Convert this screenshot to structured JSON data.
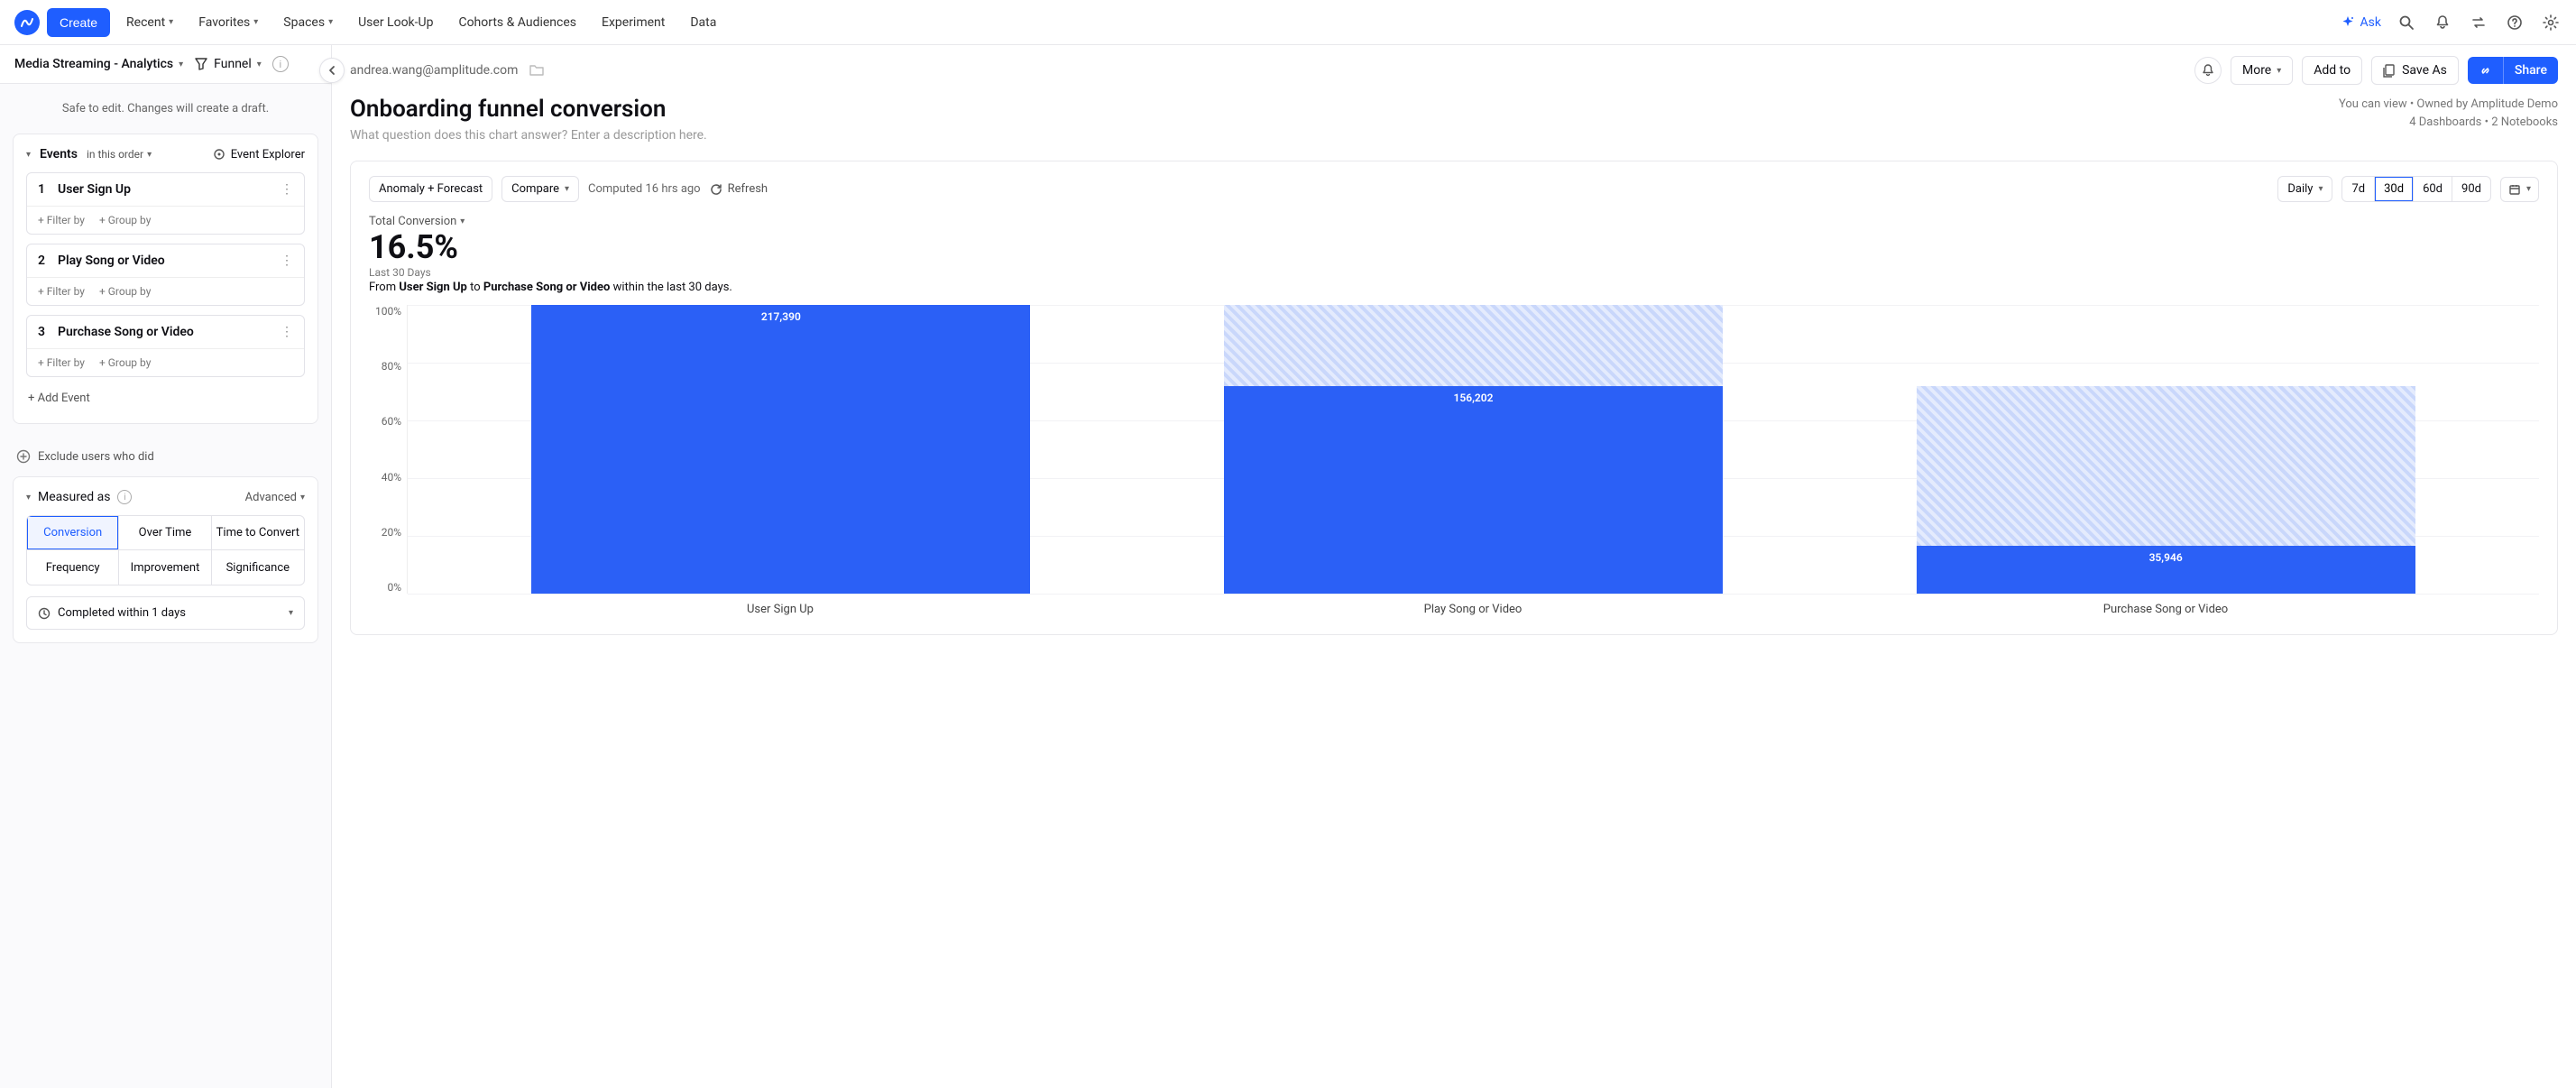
{
  "topbar": {
    "create": "Create",
    "nav": [
      "Recent",
      "Favorites",
      "Spaces",
      "User Look-Up",
      "Cohorts & Audiences",
      "Experiment",
      "Data"
    ],
    "ask": "Ask"
  },
  "left": {
    "project": "Media Streaming - Analytics",
    "chartType": "Funnel",
    "safeEdit": "Safe to edit. Changes will create a draft.",
    "eventsTitle": "Events",
    "inOrder": "in this order",
    "eventExplorer": "Event Explorer",
    "events": [
      {
        "n": "1",
        "name": "User Sign Up"
      },
      {
        "n": "2",
        "name": "Play Song or Video"
      },
      {
        "n": "3",
        "name": "Purchase Song or Video"
      }
    ],
    "filterBy": "+ Filter by",
    "groupBy": "+ Group by",
    "addEvent": "+ Add Event",
    "exclude": "Exclude users who did",
    "measuredAs": "Measured as",
    "advanced": "Advanced",
    "measures": [
      "Conversion",
      "Over Time",
      "Time to Convert",
      "Frequency",
      "Improvement",
      "Significance"
    ],
    "activeMeasure": 0,
    "completed": "Completed within 1 days"
  },
  "main": {
    "email": "andrea.wang@amplitude.com",
    "more": "More",
    "addTo": "Add to",
    "saveAs": "Save As",
    "share": "Share",
    "title": "Onboarding funnel conversion",
    "descPlaceholder": "What question does this chart answer? Enter a description here.",
    "metaLine1": "You can view • Owned by Amplitude Demo",
    "metaLine2": "4 Dashboards • 2 Notebooks",
    "toolbar": {
      "anomaly": "Anomaly + Forecast",
      "compare": "Compare",
      "computed": "Computed 16 hrs ago",
      "refresh": "Refresh",
      "daily": "Daily",
      "ranges": [
        "7d",
        "30d",
        "60d",
        "90d"
      ],
      "activeRange": 1
    },
    "metric": {
      "label": "Total Conversion",
      "value": "16.5%",
      "sub": "Last 30 Days",
      "from": "From ",
      "ev1": "User Sign Up",
      "to": " to ",
      "ev2": "Purchase Song or Video",
      "tail": " within the last 30 days."
    },
    "chart": {
      "type": "bar",
      "yTicks": [
        "100%",
        "80%",
        "60%",
        "40%",
        "20%",
        "0%"
      ],
      "background_color": "#ffffff",
      "grid_color": "#f2f2f5",
      "bar_color": "#2b60f6",
      "drop_stripe_colors": [
        "#c9d7fb",
        "#e4ebfd"
      ],
      "ylim": [
        0,
        100
      ],
      "categories": [
        "User Sign Up",
        "Play Song or Video",
        "Purchase Song or Video"
      ],
      "bars": [
        {
          "solidPct": 100,
          "dropTopPct": 0,
          "label": "217,390"
        },
        {
          "solidPct": 71.8,
          "dropTopPct": 100,
          "label": "156,202"
        },
        {
          "solidPct": 16.5,
          "dropTopPct": 71.8,
          "label": "35,946"
        }
      ]
    }
  }
}
